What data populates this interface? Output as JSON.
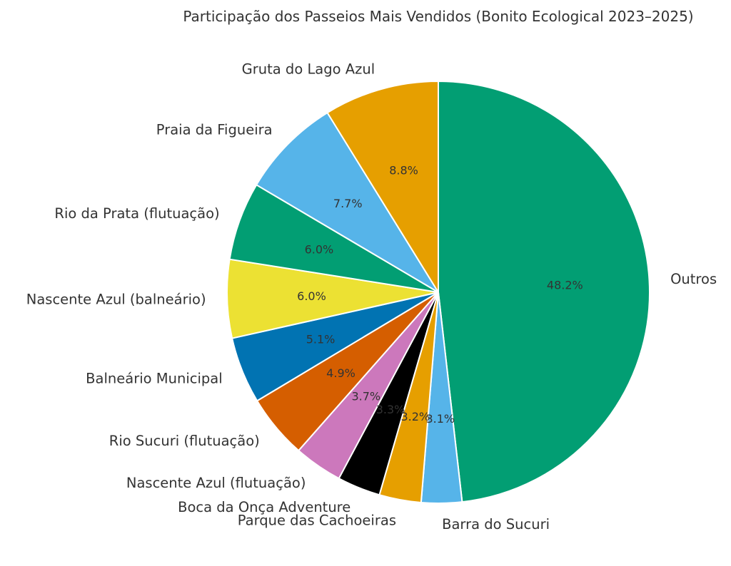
{
  "chart_data": {
    "type": "pie",
    "title": "Participação dos Passeios Mais Vendidos (Bonito Ecological 2023–2025)",
    "start_angle_deg": 90,
    "direction": "clockwise",
    "center": [
      614,
      410
    ],
    "radius": 296,
    "slices": [
      {
        "label": "Outros",
        "value": 48.2,
        "pct_label": "48.2%",
        "color": "#029e73"
      },
      {
        "label": "Barra do Sucuri",
        "value": 3.1,
        "pct_label": "3.1%",
        "color": "#56b4e9"
      },
      {
        "label": "Parque das Cachoeiras",
        "value": 3.2,
        "pct_label": "3.2%",
        "color": "#e69f00"
      },
      {
        "label": "Boca da Onça Adventure",
        "value": 3.3,
        "pct_label": "3.3%",
        "color": "#000000"
      },
      {
        "label": "Nascente Azul (flutuação)",
        "value": 3.7,
        "pct_label": "3.7%",
        "color": "#cc78bc"
      },
      {
        "label": "Rio Sucuri (flutuação)",
        "value": 4.9,
        "pct_label": "4.9%",
        "color": "#d55e00"
      },
      {
        "label": "Balneário Municipal",
        "value": 5.1,
        "pct_label": "5.1%",
        "color": "#0173b2"
      },
      {
        "label": "Nascente Azul (balneário)",
        "value": 6.0,
        "pct_label": "6.0%",
        "color": "#ece133"
      },
      {
        "label": "Rio da Prata (flutuação)",
        "value": 6.0,
        "pct_label": "6.0%",
        "color": "#029e73"
      },
      {
        "label": "Praia da Figueira",
        "value": 7.7,
        "pct_label": "7.7%",
        "color": "#56b4e9"
      },
      {
        "label": "Gruta do Lago Azul",
        "value": 8.8,
        "pct_label": "8.8%",
        "color": "#e69f00"
      }
    ],
    "legend": "none"
  }
}
